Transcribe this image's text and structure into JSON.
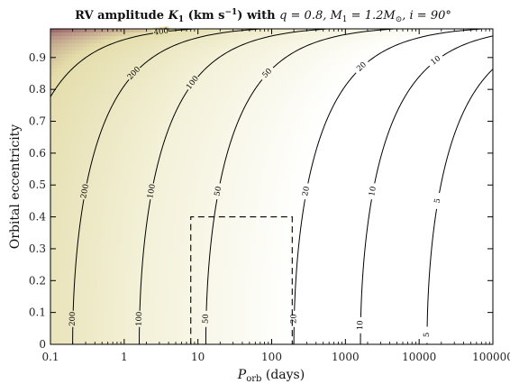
{
  "chart_data": {
    "type": "heatmap",
    "title": "RV amplitude K1 (km s−1) with q = 0.8, M1 = 1.2M⊙, i = 90°",
    "title_parts": {
      "prefix": "RV amplitude ",
      "k_sym": "K",
      "k_sub": "1",
      "units_open": " (km s",
      "units_exp": "−1",
      "units_close": ") with ",
      "params": "q = 0.8, M",
      "m_sub": "1",
      "params2": " = 1.2M",
      "sun": "⊙",
      "params3": ", i = 90°"
    },
    "xlabel": {
      "main": "P",
      "sub": "orb",
      "rest": " (days)"
    },
    "ylabel": "Orbital eccentricity",
    "x_scale": "log",
    "xlim": [
      0.1,
      100000
    ],
    "ylim": [
      0,
      0.99
    ],
    "x_ticks": [
      {
        "value": 0.1,
        "label": "0.1"
      },
      {
        "value": 1,
        "label": "1"
      },
      {
        "value": 10,
        "label": "10"
      },
      {
        "value": 100,
        "label": "100"
      },
      {
        "value": 1000,
        "label": "1000"
      },
      {
        "value": 10000,
        "label": "10000"
      },
      {
        "value": 100000,
        "label": "100000"
      }
    ],
    "y_ticks": [
      {
        "value": 0,
        "label": "0"
      },
      {
        "value": 0.1,
        "label": "0.1"
      },
      {
        "value": 0.2,
        "label": "0.2"
      },
      {
        "value": 0.3,
        "label": "0.3"
      },
      {
        "value": 0.4,
        "label": "0.4"
      },
      {
        "value": 0.5,
        "label": "0.5"
      },
      {
        "value": 0.6,
        "label": "0.6"
      },
      {
        "value": 0.7,
        "label": "0.7"
      },
      {
        "value": 0.8,
        "label": "0.8"
      },
      {
        "value": 0.9,
        "label": "0.9"
      }
    ],
    "contour_levels": [
      {
        "level": 400,
        "label": "400",
        "upper_label_e": 0.98,
        "lower_label_e": 0.79
      },
      {
        "level": 200,
        "label": "200",
        "upper_label_e": 0.85,
        "lower_label_e": 0.48,
        "bottom_label_e": 0.08
      },
      {
        "level": 100,
        "label": "100",
        "upper_label_e": 0.82,
        "lower_label_e": 0.48,
        "bottom_label_e": 0.08
      },
      {
        "level": 50,
        "label": "50",
        "upper_label_e": 0.85,
        "lower_label_e": 0.48,
        "bottom_label_e": 0.08
      },
      {
        "level": 20,
        "label": "20",
        "upper_label_e": 0.87,
        "lower_label_e": 0.48,
        "bottom_label_e": 0.08
      },
      {
        "level": 10,
        "label": "10",
        "upper_label_e": 0.89,
        "lower_label_e": 0.48,
        "bottom_label_e": 0.06
      },
      {
        "level": 5,
        "label": "5",
        "upper_label_e": 0.9,
        "lower_label_e": 0.45,
        "bottom_label_e": 0.03
      }
    ],
    "color_scale": {
      "low": "#ffffff",
      "mid": "#f3f1d8",
      "high": "#e4dcaa",
      "top": "#7a2e4e"
    },
    "region": {
      "p_min": 8,
      "p_max": 190,
      "e_min": 0,
      "e_max": 0.4
    },
    "grid": false,
    "legend": "none"
  }
}
